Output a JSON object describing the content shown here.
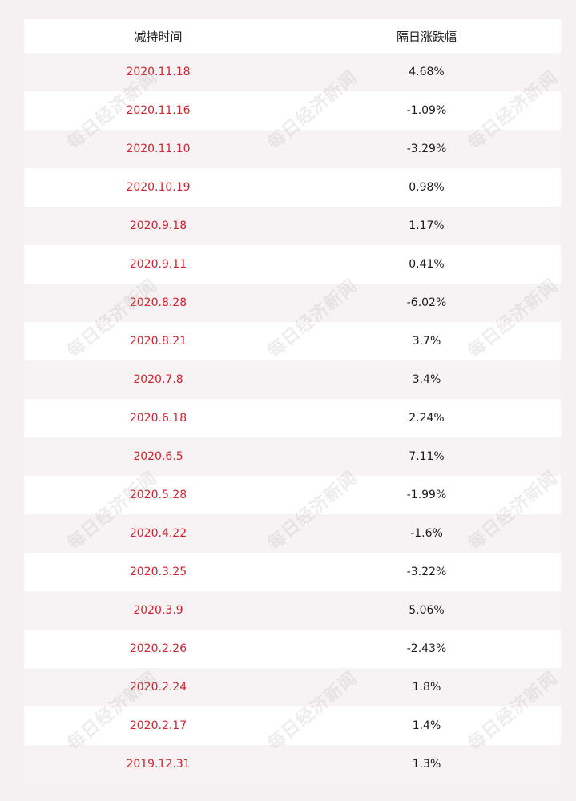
{
  "table": {
    "headers": [
      "减持时间",
      "隔日涨跌幅"
    ],
    "rows": [
      {
        "date": "2020.11.18",
        "change": "4.68%"
      },
      {
        "date": "2020.11.16",
        "change": "-1.09%"
      },
      {
        "date": "2020.11.10",
        "change": "-3.29%"
      },
      {
        "date": "2020.10.19",
        "change": "0.98%"
      },
      {
        "date": "2020.9.18",
        "change": "1.17%"
      },
      {
        "date": "2020.9.11",
        "change": "0.41%"
      },
      {
        "date": "2020.8.28",
        "change": "-6.02%"
      },
      {
        "date": "2020.8.21",
        "change": "3.7%"
      },
      {
        "date": "2020.7.8",
        "change": "3.4%"
      },
      {
        "date": "2020.6.18",
        "change": "2.24%"
      },
      {
        "date": "2020.6.5",
        "change": "7.11%"
      },
      {
        "date": "2020.5.28",
        "change": "-1.99%"
      },
      {
        "date": "2020.4.22",
        "change": "-1.6%"
      },
      {
        "date": "2020.3.25",
        "change": "-3.22%"
      },
      {
        "date": "2020.3.9",
        "change": "5.06%"
      },
      {
        "date": "2020.2.26",
        "change": "-2.43%"
      },
      {
        "date": "2020.2.24",
        "change": "1.8%"
      },
      {
        "date": "2020.2.17",
        "change": "1.4%"
      },
      {
        "date": "2019.12.31",
        "change": "1.3%"
      }
    ]
  },
  "watermark": {
    "text": "每日经济新闻"
  },
  "colors": {
    "date_text": "#d3232e",
    "value_text": "#1a1a1a",
    "page_background": "#f5f1f2"
  }
}
